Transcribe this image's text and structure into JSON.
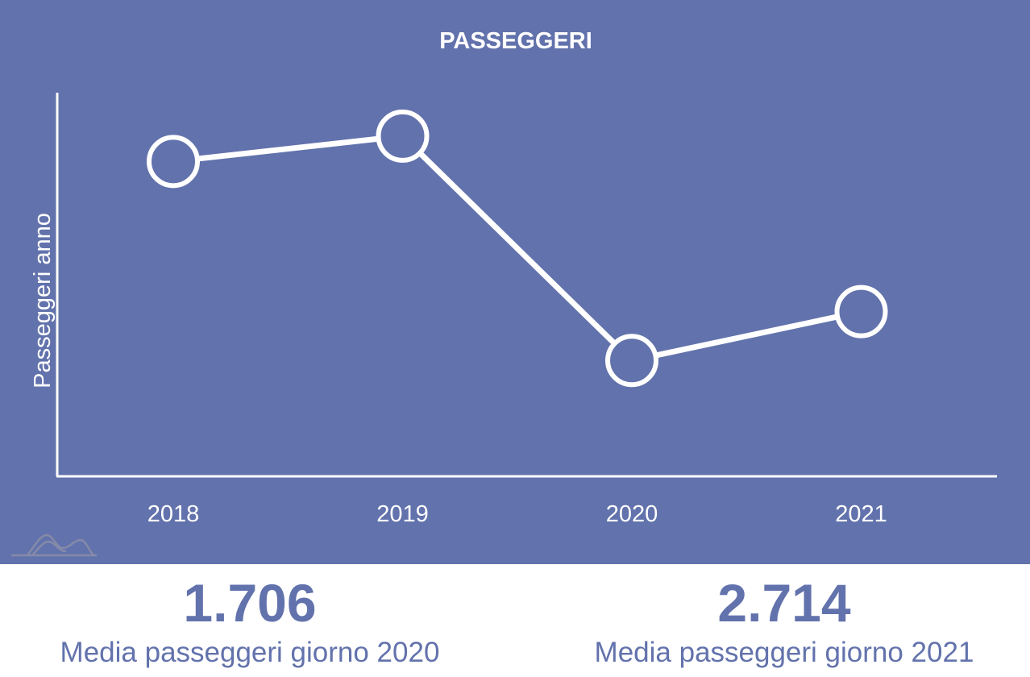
{
  "colors": {
    "panel_background": "#6272ac",
    "foreground": "#ffffff",
    "stat_text": "#6272ac",
    "logo": "#8c8fa8"
  },
  "logo": {
    "icon": "wave-logo-icon"
  },
  "chart_data": {
    "type": "line",
    "title": "PASSEGGERI",
    "xlabel": "",
    "ylabel": "Passeggeri anno",
    "categories": [
      "2018",
      "2019",
      "2020",
      "2021"
    ],
    "series": [
      {
        "values": [
          870000,
          940000,
          320000,
          455000
        ]
      }
    ],
    "ylim": [
      0,
      1060000
    ],
    "y_ticks_shown": false,
    "grid": false,
    "legend": "none"
  },
  "stats": [
    {
      "value": "1.706",
      "label": "Media passeggeri giorno 2020"
    },
    {
      "value": "2.714",
      "label": "Media passeggeri giorno 2021"
    }
  ]
}
